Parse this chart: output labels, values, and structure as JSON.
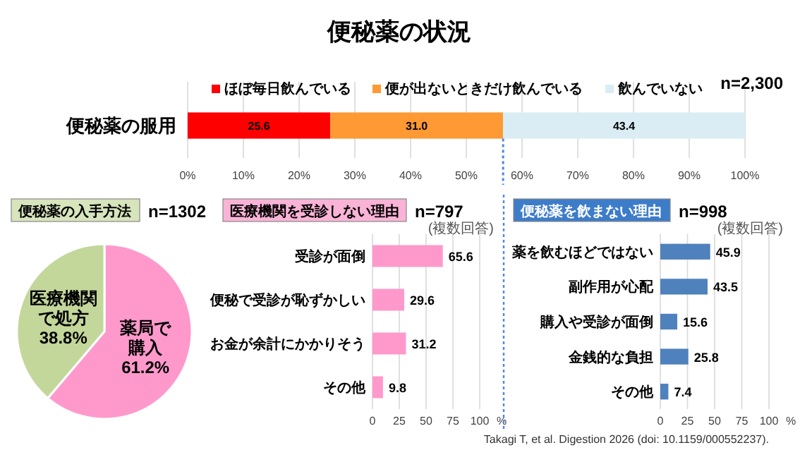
{
  "chart_data": [
    {
      "type": "bar",
      "orientation": "horizontal",
      "stacked": true,
      "title": "便秘薬の状況",
      "annotations": [
        "n=2,300",
        "Takagi T, et al. Digestion 2026 (doi: 10.1159/000552237)."
      ],
      "categories": [
        "便秘薬の服用"
      ],
      "series": [
        {
          "name": "ほぼ毎日飲んでいる",
          "color": "#ff0000",
          "values": [
            25.6
          ],
          "value_labels": [
            "25.6"
          ]
        },
        {
          "name": "便が出ないときだけ飲んでいる",
          "color": "#ff9933",
          "values": [
            31.0
          ],
          "value_labels": [
            "31.0"
          ]
        },
        {
          "name": "飲んでいない",
          "color": "#daedf4",
          "values": [
            43.4
          ],
          "value_labels": [
            "43.4"
          ]
        }
      ],
      "xlim": [
        0,
        100
      ],
      "xticks": [
        {
          "value": 0,
          "label": "0%"
        },
        {
          "value": 10,
          "label": "10%"
        },
        {
          "value": 20,
          "label": "20%"
        },
        {
          "value": 30,
          "label": "30%"
        },
        {
          "value": 40,
          "label": "40%"
        },
        {
          "value": 50,
          "label": "50%"
        },
        {
          "value": 60,
          "label": "60%"
        },
        {
          "value": 70,
          "label": "70%"
        },
        {
          "value": 80,
          "label": "80%"
        },
        {
          "value": 90,
          "label": "90%"
        },
        {
          "value": 100,
          "label": "100%"
        }
      ],
      "grid": "x",
      "legend": "top",
      "ref_lines": [
        {
          "axis": "x",
          "value": 56.6,
          "color": "#4a86e8",
          "line_style": "dotted"
        }
      ]
    },
    {
      "type": "pie",
      "title": "便秘薬の入手方法",
      "annotations": [
        "n=1302"
      ],
      "categories": [
        "薬局で購入",
        "医療機関で処方"
      ],
      "values": [
        61.2,
        38.8
      ],
      "colors": [
        "#ff99cc",
        "#c4d79b"
      ],
      "value_labels": [
        "61.2%",
        "38.8%"
      ]
    },
    {
      "type": "bar",
      "orientation": "horizontal",
      "title": "医療機関を受診しない理由",
      "annotations": [
        "n=797",
        "(複数回答)"
      ],
      "categories": [
        "受診が面倒",
        "便秘で受診が恥ずかしい",
        "お金が余計にかかりそう",
        "その他"
      ],
      "values": [
        65.6,
        29.6,
        31.2,
        9.8
      ],
      "color": "#ff99cc",
      "xlim": [
        0,
        100
      ],
      "xticks": [
        0,
        25,
        50,
        75,
        100
      ],
      "xlabel": "%",
      "grid": "x",
      "data_labels": true
    },
    {
      "type": "bar",
      "orientation": "horizontal",
      "title": "便秘薬を飲まない理由",
      "annotations": [
        "n=998",
        "(複数回答)"
      ],
      "categories": [
        "薬を飲むほどではない",
        "副作用が心配",
        "購入や受診が面倒",
        "金銭的な負担",
        "その他"
      ],
      "values": [
        45.9,
        43.5,
        15.6,
        25.8,
        7.4
      ],
      "color": "#4f81bd",
      "xlim": [
        0,
        100
      ],
      "xticks": [
        0,
        25,
        50,
        75,
        100
      ],
      "xlabel": "%",
      "grid": "x",
      "data_labels": true
    }
  ]
}
